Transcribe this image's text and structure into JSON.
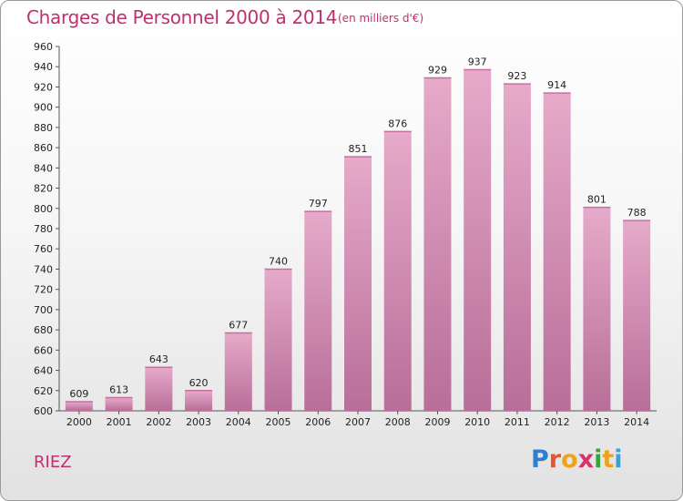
{
  "header": {
    "title": "Charges de Personnel 2000 à 2014",
    "subtitle": "(en milliers d'€)"
  },
  "footer": {
    "place": "RIEZ",
    "logo": {
      "text": "Proxiti",
      "letters": [
        "P",
        "r",
        "o",
        "x",
        "i",
        "t",
        "i"
      ],
      "colors": [
        "#2f7fd0",
        "#e8552a",
        "#f0a21c",
        "#d6336c",
        "#3aa33a",
        "#f0a21c",
        "#3aa0d8"
      ]
    }
  },
  "colors": {
    "bar_light": "#e6aaca",
    "bar_dark": "#b86e98",
    "title": "#c0306e"
  },
  "chart_data": {
    "type": "bar",
    "title": "Charges de Personnel 2000 à 2014",
    "subtitle": "(en milliers d'€)",
    "categories": [
      "2000",
      "2001",
      "2002",
      "2003",
      "2004",
      "2005",
      "2006",
      "2007",
      "2008",
      "2009",
      "2010",
      "2011",
      "2012",
      "2013",
      "2014"
    ],
    "values": [
      609,
      613,
      643,
      620,
      677,
      740,
      797,
      851,
      876,
      929,
      937,
      923,
      914,
      801,
      788
    ],
    "ylim": [
      600,
      960
    ],
    "yticks": [
      600,
      620,
      640,
      660,
      680,
      700,
      720,
      740,
      760,
      780,
      800,
      820,
      840,
      860,
      880,
      900,
      920,
      940,
      960
    ],
    "grid": false,
    "xlabel": "",
    "ylabel": ""
  }
}
